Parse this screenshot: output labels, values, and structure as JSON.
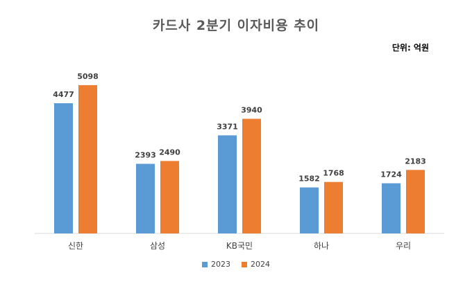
{
  "chart_data": {
    "type": "bar",
    "title": "카드사 2분기 이자비용 추이",
    "unit_label": "단위: 억원",
    "categories": [
      "신한",
      "삼성",
      "KB국민",
      "하나",
      "우리"
    ],
    "series": [
      {
        "name": "2023",
        "color": "#5B9BD5",
        "values": [
          4477,
          2393,
          3371,
          1582,
          1724
        ]
      },
      {
        "name": "2024",
        "color": "#ED7D31",
        "values": [
          5098,
          2490,
          3940,
          1768,
          2183
        ]
      }
    ],
    "ylim": [
      0,
      6000
    ],
    "grid": false,
    "legend": "bottom-center"
  }
}
